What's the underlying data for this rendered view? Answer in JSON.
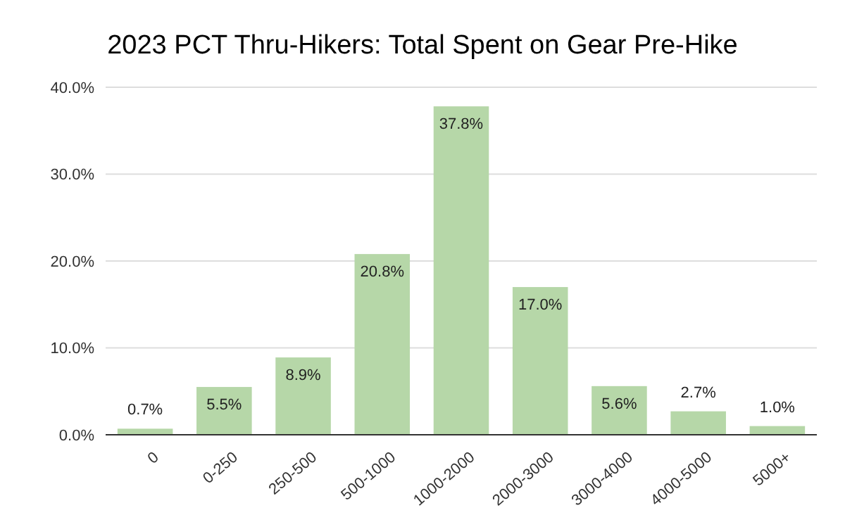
{
  "chart_data": {
    "type": "bar",
    "title": "2023 PCT Thru-Hikers: Total Spent on Gear Pre-Hike",
    "categories": [
      "0",
      "0-250",
      "250-500",
      "500-1000",
      "1000-2000",
      "2000-3000",
      "3000-4000",
      "4000-5000",
      "5000+"
    ],
    "values": [
      0.7,
      5.5,
      8.9,
      20.8,
      37.8,
      17.0,
      5.6,
      2.7,
      1.0
    ],
    "value_labels": [
      "0.7%",
      "5.5%",
      "8.9%",
      "20.8%",
      "37.8%",
      "17.0%",
      "5.6%",
      "2.7%",
      "1.0%"
    ],
    "color": "#b6d7a8",
    "ylim": [
      0,
      40
    ],
    "yticks": [
      {
        "value": 0,
        "label": "0.0%"
      },
      {
        "value": 10,
        "label": "10.0%"
      },
      {
        "value": 20,
        "label": "20.0%"
      },
      {
        "value": 30,
        "label": "30.0%"
      },
      {
        "value": 40,
        "label": "40.0%"
      }
    ],
    "grid": "y"
  }
}
